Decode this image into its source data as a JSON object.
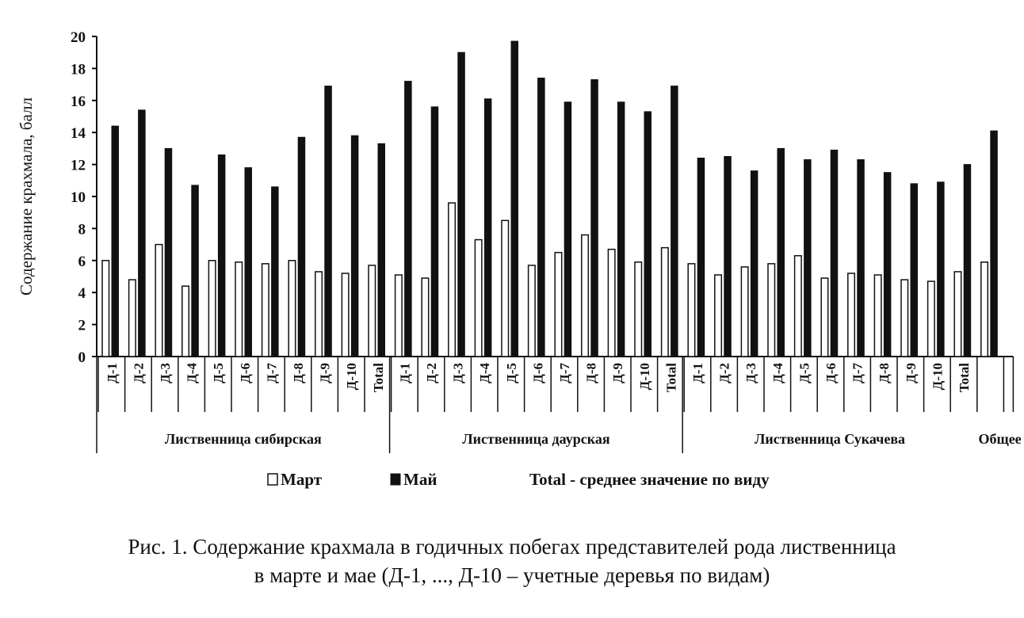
{
  "chart_data": {
    "type": "bar",
    "ylabel": "Содержание крахмала, балл",
    "ylim": [
      0,
      20
    ],
    "yticks": [
      0,
      2,
      4,
      6,
      8,
      10,
      12,
      14,
      16,
      18,
      20
    ],
    "grid": false,
    "colors": {
      "Март": "#ffffff",
      "Май": "#111111",
      "outline": "#111111"
    },
    "groups": [
      {
        "name": "Лиственница сибирская",
        "categories": [
          "Д-1",
          "Д-2",
          "Д-3",
          "Д-4",
          "Д-5",
          "Д-6",
          "Д-7",
          "Д-8",
          "Д-9",
          "Д-10",
          "Total"
        ],
        "march": [
          6.0,
          4.8,
          7.0,
          4.4,
          6.0,
          5.9,
          5.8,
          6.0,
          5.3,
          5.2,
          5.7
        ],
        "may": [
          14.4,
          15.4,
          13.0,
          10.7,
          12.6,
          11.8,
          10.6,
          13.7,
          16.9,
          13.8,
          13.3
        ]
      },
      {
        "name": "Лиственница даурская",
        "categories": [
          "Д-1",
          "Д-2",
          "Д-3",
          "Д-4",
          "Д-5",
          "Д-6",
          "Д-7",
          "Д-8",
          "Д-9",
          "Д-10",
          "Total"
        ],
        "march": [
          5.1,
          4.9,
          9.6,
          7.3,
          8.5,
          5.7,
          6.5,
          7.6,
          6.7,
          5.9,
          6.8
        ],
        "may": [
          17.2,
          15.6,
          19.0,
          16.1,
          19.7,
          17.4,
          15.9,
          17.3,
          15.9,
          15.3,
          16.9
        ]
      },
      {
        "name": "Лиственница Сукачева",
        "categories": [
          "Д-1",
          "Д-2",
          "Д-3",
          "Д-4",
          "Д-5",
          "Д-6",
          "Д-7",
          "Д-8",
          "Д-9",
          "Д-10",
          "Total"
        ],
        "march": [
          5.8,
          5.1,
          5.6,
          5.8,
          6.3,
          4.9,
          5.2,
          5.1,
          4.8,
          4.7,
          5.3
        ],
        "may": [
          12.4,
          12.5,
          11.6,
          13.0,
          12.3,
          12.9,
          12.3,
          11.5,
          10.8,
          10.9,
          12.0
        ]
      },
      {
        "name": "Общее",
        "categories": [
          ""
        ],
        "march": [
          5.9
        ],
        "may": [
          14.1
        ]
      }
    ],
    "legend": {
      "series": [
        "Март",
        "Май"
      ],
      "note": "Total - среднее значение по виду",
      "position": "bottom"
    }
  },
  "caption": {
    "line1": "Рис. 1. Содержание крахмала в годичных  побегах  представителей  рода  лиственница",
    "line2": "в марте и мае (Д-1, ..., Д-10 – учетные деревья по видам)"
  }
}
